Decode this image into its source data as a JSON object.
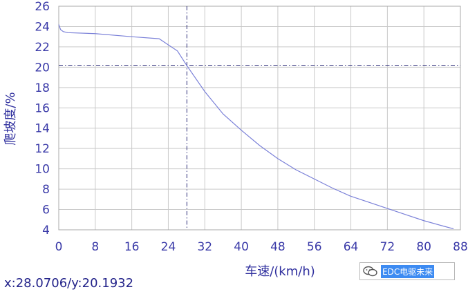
{
  "chart_data": {
    "type": "line",
    "title": "",
    "xlabel": "车速/(km/h)",
    "ylabel": "爬坡度/%",
    "xlim": [
      0,
      88
    ],
    "ylim": [
      4,
      26
    ],
    "x_ticks": [
      "0",
      "8",
      "16",
      "24",
      "32",
      "40",
      "48",
      "56",
      "64",
      "72",
      "80",
      "88"
    ],
    "y_ticks": [
      "4",
      "6",
      "8",
      "10",
      "12",
      "14",
      "16",
      "18",
      "20",
      "22",
      "24",
      "26"
    ],
    "grid": true,
    "series": [
      {
        "color": "#7a80d8",
        "x": [
          0,
          0.4,
          1,
          2,
          8,
          16,
          22,
          24,
          26,
          28,
          32,
          36,
          40,
          44,
          48,
          52,
          56,
          60,
          64,
          68,
          72,
          76,
          80,
          84,
          86.5
        ],
        "y": [
          24.2,
          23.7,
          23.5,
          23.4,
          23.3,
          23.0,
          22.8,
          22.2,
          21.6,
          20.2,
          17.6,
          15.4,
          13.8,
          12.3,
          11.0,
          9.9,
          9.0,
          8.1,
          7.3,
          6.7,
          6.1,
          5.5,
          4.9,
          4.4,
          4.1
        ]
      }
    ],
    "crosshair": {
      "x": 28.0706,
      "y": 20.1932,
      "color": "#2e2e7a"
    }
  },
  "coordinate_readout": "x:28.0706/y:20.1932",
  "watermark": {
    "text": "EDC电驱未来",
    "icon": "wechat-bubble-icon"
  }
}
